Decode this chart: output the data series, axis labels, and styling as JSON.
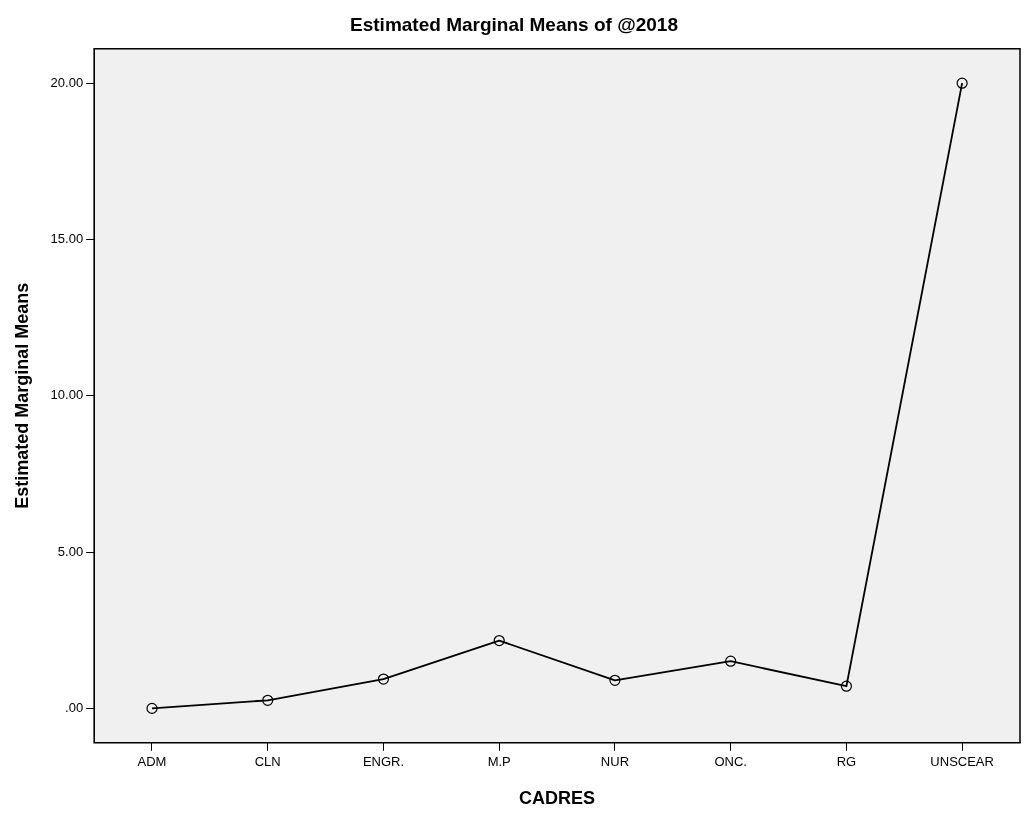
{
  "chart_data": {
    "type": "line",
    "title": "Estimated Marginal Means of @2018",
    "xlabel": "CADRES",
    "ylabel": "Estimated Marginal Means",
    "categories": [
      "ADM",
      "CLN",
      "ENGR.",
      "M.P",
      "NUR",
      "ONC.",
      "RG",
      "UNSCEAR"
    ],
    "series": [
      {
        "color": "#000000",
        "values": [
          0.0,
          0.26,
          0.94,
          2.17,
          0.9,
          1.51,
          0.71,
          20.0
        ]
      }
    ],
    "ylim": [
      -1.1,
      21.1
    ],
    "yticks": [
      {
        "value": 0,
        "label": ".00"
      },
      {
        "value": 5,
        "label": "5.00"
      },
      {
        "value": 10,
        "label": "10.00"
      },
      {
        "value": 15,
        "label": "15.00"
      },
      {
        "value": 20,
        "label": "20.00"
      }
    ],
    "grid": false,
    "legend": false,
    "marker": "circle",
    "line_style": "solid"
  }
}
